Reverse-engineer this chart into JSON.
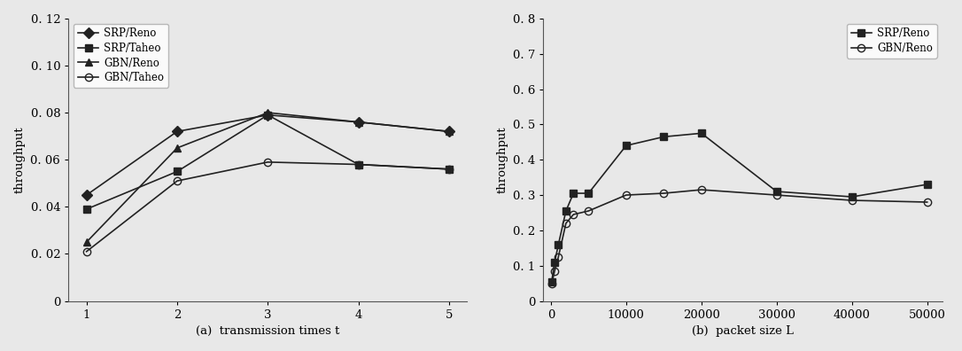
{
  "chart_a": {
    "xlabel": "(a)  transmission times t",
    "ylabel": "throughput",
    "xlim": [
      0.8,
      5.2
    ],
    "ylim": [
      0,
      0.12
    ],
    "yticks": [
      0,
      0.02,
      0.04,
      0.06,
      0.08,
      0.1,
      0.12
    ],
    "xticks": [
      1,
      2,
      3,
      4,
      5
    ],
    "series": [
      {
        "label": "SRP/Reno",
        "x": [
          1,
          2,
          3,
          4,
          5
        ],
        "y": [
          0.045,
          0.072,
          0.079,
          0.076,
          0.072
        ],
        "marker": "D",
        "markersize": 6,
        "color": "#222222",
        "fillstyle": "full",
        "linewidth": 1.2
      },
      {
        "label": "SRP/Taheo",
        "x": [
          1,
          2,
          3,
          4,
          5
        ],
        "y": [
          0.039,
          0.055,
          0.079,
          0.058,
          0.056
        ],
        "marker": "s",
        "markersize": 6,
        "color": "#222222",
        "fillstyle": "full",
        "linewidth": 1.2
      },
      {
        "label": "GBN/Reno",
        "x": [
          1,
          2,
          3,
          4,
          5
        ],
        "y": [
          0.025,
          0.065,
          0.08,
          0.076,
          0.072
        ],
        "marker": "^",
        "markersize": 6,
        "color": "#222222",
        "fillstyle": "full",
        "linewidth": 1.2
      },
      {
        "label": "GBN/Taheo",
        "x": [
          1,
          2,
          3,
          4,
          5
        ],
        "y": [
          0.021,
          0.051,
          0.059,
          0.058,
          0.056
        ],
        "marker": "o",
        "markersize": 6,
        "color": "#222222",
        "fillstyle": "none",
        "linewidth": 1.2
      }
    ]
  },
  "chart_b": {
    "xlabel": "(b)  packet size L",
    "ylabel": "throughput",
    "xlim": [
      -1000,
      52000
    ],
    "ylim": [
      0,
      0.8
    ],
    "yticks": [
      0,
      0.1,
      0.2,
      0.3,
      0.4,
      0.5,
      0.6,
      0.7,
      0.8
    ],
    "xticks": [
      0,
      10000,
      20000,
      30000,
      40000,
      50000
    ],
    "xticklabels": [
      "0",
      "10000",
      "20000",
      "30000",
      "40000",
      "50000"
    ],
    "series": [
      {
        "label": "SRP/Reno",
        "x": [
          100,
          500,
          1000,
          2000,
          3000,
          5000,
          10000,
          15000,
          20000,
          30000,
          40000,
          50000
        ],
        "y": [
          0.055,
          0.11,
          0.16,
          0.255,
          0.305,
          0.305,
          0.44,
          0.465,
          0.475,
          0.31,
          0.295,
          0.33
        ],
        "marker": "s",
        "markersize": 6,
        "color": "#222222",
        "fillstyle": "full",
        "linewidth": 1.2
      },
      {
        "label": "GBN/Reno",
        "x": [
          100,
          500,
          1000,
          2000,
          3000,
          5000,
          10000,
          15000,
          20000,
          30000,
          40000,
          50000
        ],
        "y": [
          0.048,
          0.085,
          0.125,
          0.22,
          0.245,
          0.255,
          0.3,
          0.305,
          0.315,
          0.3,
          0.285,
          0.28
        ],
        "marker": "o",
        "markersize": 6,
        "color": "#222222",
        "fillstyle": "none",
        "linewidth": 1.2
      }
    ]
  },
  "fig_background": "#e8e8e8",
  "axes_background": "#e8e8e8",
  "font_size": 9.5,
  "label_fontsize": 9.5
}
